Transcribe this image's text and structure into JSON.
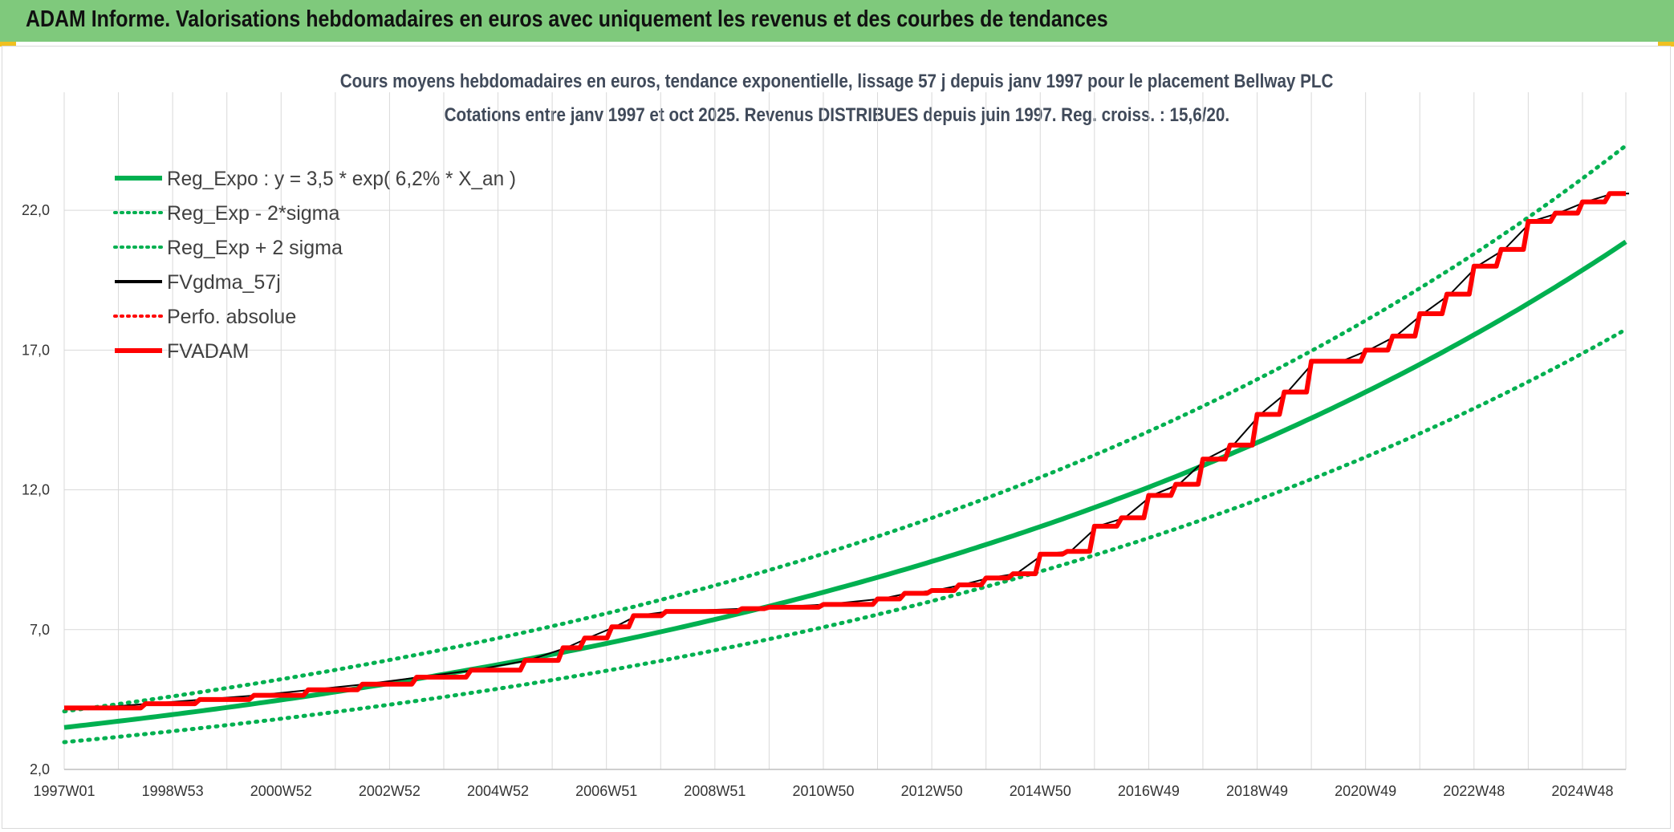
{
  "header": {
    "title": "ADAM Informe. Valorisations hebdomadaires en euros avec uniquement les revenus et des courbes de tendances"
  },
  "colors": {
    "header_bg": "#7fc97c",
    "reg_expo": "#00b050",
    "fvgdma": "#000000",
    "fvadam": "#ff0000",
    "perfo": "#ff0000"
  },
  "chart_data": {
    "type": "line",
    "title": "Cours moyens hebdomadaires en euros, tendance exponentielle, lissage 57 j depuis janv 1997 pour le placement Bellway PLC",
    "subtitle": "Cotations entre janv 1997 et oct 2025. Revenus DISTRIBUES depuis juin 1997. Reg. croiss. : 15,6/20.",
    "xlabel": "",
    "ylabel": "",
    "x_start_year": 1997.0,
    "x_end_year": 2025.8,
    "xticks": [
      "1997W01",
      "1998W53",
      "2000W52",
      "2002W52",
      "2004W52",
      "2006W51",
      "2008W51",
      "2010W50",
      "2012W50",
      "2014W50",
      "2016W49",
      "2018W49",
      "2020W49",
      "2022W48",
      "2024W48"
    ],
    "yticks": [
      "2,0",
      "7,0",
      "12,0",
      "17,0",
      "22,0"
    ],
    "ylim": [
      2.0,
      24.5
    ],
    "grid": true,
    "legend_position": "top-left",
    "series": [
      {
        "name": "Reg_Expo : y = 3,5 * exp( 6,2% *  X_an )",
        "style": "solid-thick",
        "color": "#00b050",
        "formula": {
          "a": 3.5,
          "b": 0.062,
          "factor": 1.0
        }
      },
      {
        "name": "Reg_Exp - 2*sigma",
        "style": "dotted",
        "color": "#00b050",
        "formula": {
          "a": 3.5,
          "b": 0.062,
          "factor": 0.85
        }
      },
      {
        "name": "Reg_Exp + 2 sigma",
        "style": "dotted",
        "color": "#00b050",
        "formula": {
          "a": 3.5,
          "b": 0.062,
          "factor": 1.165
        }
      },
      {
        "name": "FVgdma_57j",
        "style": "solid",
        "color": "#000000"
      },
      {
        "name": "Perfo. absolue",
        "style": "dotted",
        "color": "#ff0000"
      },
      {
        "name": "FVADAM",
        "style": "solid-thick",
        "color": "#ff0000"
      }
    ],
    "fvadam_steps": [
      [
        1997.0,
        4.2
      ],
      [
        1997.5,
        4.2
      ],
      [
        1998.5,
        4.35
      ],
      [
        1999.5,
        4.5
      ],
      [
        2000.5,
        4.65
      ],
      [
        2001.5,
        4.85
      ],
      [
        2002.5,
        5.05
      ],
      [
        2003.5,
        5.3
      ],
      [
        2004.5,
        5.55
      ],
      [
        2005.5,
        5.9
      ],
      [
        2006.2,
        6.35
      ],
      [
        2006.6,
        6.7
      ],
      [
        2007.1,
        7.1
      ],
      [
        2007.5,
        7.5
      ],
      [
        2008.1,
        7.65
      ],
      [
        2009.5,
        7.75
      ],
      [
        2010.0,
        7.8
      ],
      [
        2011.0,
        7.9
      ],
      [
        2012.0,
        8.1
      ],
      [
        2012.5,
        8.3
      ],
      [
        2013.0,
        8.4
      ],
      [
        2013.5,
        8.6
      ],
      [
        2014.0,
        8.85
      ],
      [
        2014.5,
        9.0
      ],
      [
        2015.0,
        9.7
      ],
      [
        2015.5,
        9.8
      ],
      [
        2016.0,
        10.7
      ],
      [
        2016.5,
        11.0
      ],
      [
        2017.0,
        11.8
      ],
      [
        2017.5,
        12.2
      ],
      [
        2018.0,
        13.1
      ],
      [
        2018.5,
        13.6
      ],
      [
        2019.0,
        14.7
      ],
      [
        2019.5,
        15.5
      ],
      [
        2020.0,
        16.6
      ],
      [
        2020.5,
        16.6
      ],
      [
        2021.0,
        17.0
      ],
      [
        2021.5,
        17.5
      ],
      [
        2022.0,
        18.3
      ],
      [
        2022.5,
        19.0
      ],
      [
        2023.0,
        20.0
      ],
      [
        2023.5,
        20.6
      ],
      [
        2024.0,
        21.6
      ],
      [
        2024.5,
        21.9
      ],
      [
        2025.0,
        22.3
      ],
      [
        2025.5,
        22.6
      ],
      [
        2025.8,
        22.6
      ]
    ]
  }
}
